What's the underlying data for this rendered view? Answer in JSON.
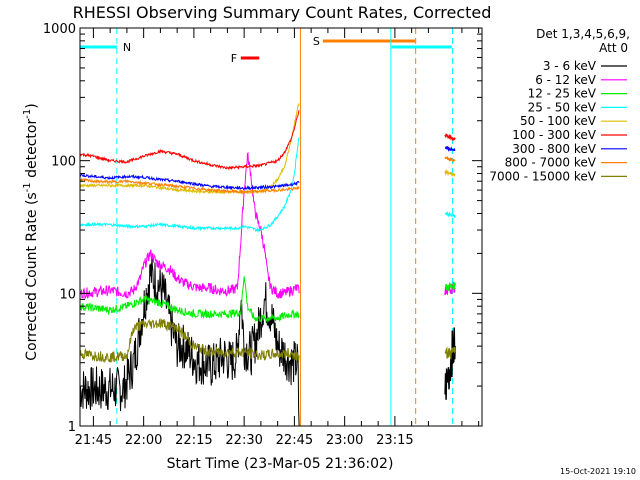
{
  "chart_data": {
    "type": "line",
    "title": "RHESSI Observing Summary Count Rates, Corrected",
    "xlabel": "Start Time (23-Mar-05 21:36:02)",
    "ylabel_parts": [
      "Corrected Count Rate (s",
      "-1",
      " detector",
      "-1",
      ")"
    ],
    "yscale": "log",
    "ylim": [
      1,
      1000
    ],
    "y_ticks": [
      {
        "value": 1,
        "label": "1"
      },
      {
        "value": 10,
        "label": "10"
      },
      {
        "value": 100,
        "label": "100"
      },
      {
        "value": 1000,
        "label": "1000"
      }
    ],
    "xlim_minutes": [
      -19,
      101
    ],
    "x_ticks": [
      {
        "t": -15,
        "label": "21:45"
      },
      {
        "t": 0,
        "label": "22:00"
      },
      {
        "t": 15,
        "label": "22:15"
      },
      {
        "t": 30,
        "label": "22:30"
      },
      {
        "t": 45,
        "label": "22:45"
      },
      {
        "t": 60,
        "label": "23:00"
      },
      {
        "t": 75,
        "label": "23:15"
      }
    ],
    "legend": {
      "placement": "right",
      "header": [
        "Det 1,3,4,5,6,9,",
        "Att 0"
      ]
    },
    "series": [
      {
        "name": "3 - 6 keV",
        "color": "#000000",
        "points": [
          [
            -19,
            1.9
          ],
          [
            -6,
            1.9
          ],
          [
            -5,
            2.2
          ],
          [
            -3,
            3
          ],
          [
            -2,
            4
          ],
          [
            0,
            8
          ],
          [
            2,
            14
          ],
          [
            4,
            12
          ],
          [
            6,
            10
          ],
          [
            8,
            6
          ],
          [
            10,
            4
          ],
          [
            12,
            4
          ],
          [
            14,
            3.5
          ],
          [
            16,
            3
          ],
          [
            18,
            3
          ],
          [
            20,
            2.8
          ],
          [
            22,
            3
          ],
          [
            24,
            3.4
          ],
          [
            26,
            3
          ],
          [
            28,
            3.5
          ],
          [
            29,
            10
          ],
          [
            30,
            4
          ],
          [
            32,
            3.5
          ],
          [
            34,
            5
          ],
          [
            36,
            9
          ],
          [
            38,
            7
          ],
          [
            40,
            4
          ],
          [
            42,
            3.5
          ],
          [
            44,
            3
          ],
          [
            46,
            3
          ],
          [
            46.4,
            1
          ]
        ],
        "x2": [
          [
            90,
            1.9
          ],
          [
            91,
            2.5
          ],
          [
            92,
            3.5
          ],
          [
            93,
            4
          ]
        ]
      },
      {
        "name": "6 - 12 keV",
        "color": "#ff00ff",
        "points": [
          [
            -19,
            10
          ],
          [
            -10,
            10.5
          ],
          [
            -5,
            10
          ],
          [
            -3,
            10.5
          ],
          [
            -1,
            13
          ],
          [
            0,
            16
          ],
          [
            2,
            20
          ],
          [
            4,
            17
          ],
          [
            6,
            16
          ],
          [
            8,
            15
          ],
          [
            10,
            13
          ],
          [
            12,
            12
          ],
          [
            14,
            11.5
          ],
          [
            16,
            11
          ],
          [
            18,
            11
          ],
          [
            20,
            11
          ],
          [
            22,
            10.5
          ],
          [
            24,
            10.5
          ],
          [
            26,
            10.5
          ],
          [
            28,
            11
          ],
          [
            29,
            25
          ],
          [
            30,
            60
          ],
          [
            31,
            110
          ],
          [
            32,
            80
          ],
          [
            33,
            45
          ],
          [
            34,
            35
          ],
          [
            35,
            30
          ],
          [
            36,
            22
          ],
          [
            37,
            14
          ],
          [
            38,
            11
          ],
          [
            40,
            10
          ],
          [
            42,
            10
          ],
          [
            44,
            10.5
          ],
          [
            46,
            11
          ],
          [
            46.4,
            10
          ]
        ],
        "x2": [
          [
            90,
            10.5
          ],
          [
            93,
            11
          ]
        ]
      },
      {
        "name": "12 - 25 keV",
        "color": "#00ee00",
        "points": [
          [
            -19,
            8
          ],
          [
            -10,
            7.5
          ],
          [
            -5,
            8
          ],
          [
            0,
            9
          ],
          [
            5,
            8.5
          ],
          [
            10,
            7.5
          ],
          [
            15,
            7
          ],
          [
            20,
            7
          ],
          [
            25,
            7
          ],
          [
            29,
            7.2
          ],
          [
            30,
            14
          ],
          [
            31,
            8
          ],
          [
            33,
            6.5
          ],
          [
            36,
            6.5
          ],
          [
            40,
            6.5
          ],
          [
            44,
            7
          ],
          [
            46,
            7
          ],
          [
            46.4,
            6.8
          ]
        ],
        "x2": [
          [
            90,
            11
          ],
          [
            93,
            11.5
          ]
        ]
      },
      {
        "name": "25 - 50 keV",
        "color": "#00ffff",
        "points": [
          [
            -19,
            33
          ],
          [
            -10,
            33
          ],
          [
            -5,
            32
          ],
          [
            0,
            32
          ],
          [
            5,
            33
          ],
          [
            10,
            32
          ],
          [
            15,
            31
          ],
          [
            20,
            31
          ],
          [
            25,
            31
          ],
          [
            28,
            31
          ],
          [
            30,
            32
          ],
          [
            32,
            31
          ],
          [
            34,
            30
          ],
          [
            36,
            31
          ],
          [
            38,
            33
          ],
          [
            40,
            38
          ],
          [
            42,
            45
          ],
          [
            44,
            60
          ],
          [
            45,
            80
          ],
          [
            46,
            130
          ],
          [
            46.4,
            150
          ]
        ],
        "x2": [
          [
            90,
            40
          ],
          [
            93,
            38
          ]
        ]
      },
      {
        "name": "50 - 100 keV",
        "color": "#ddbb00",
        "points": [
          [
            -19,
            65
          ],
          [
            -5,
            65
          ],
          [
            0,
            65
          ],
          [
            10,
            60
          ],
          [
            20,
            58
          ],
          [
            30,
            58
          ],
          [
            34,
            58
          ],
          [
            36,
            60
          ],
          [
            38,
            64
          ],
          [
            40,
            72
          ],
          [
            42,
            90
          ],
          [
            44,
            140
          ],
          [
            45,
            190
          ],
          [
            46,
            250
          ],
          [
            46.4,
            270
          ]
        ],
        "x2": [
          [
            90,
            82
          ],
          [
            93,
            78
          ]
        ]
      },
      {
        "name": "100 - 300 keV",
        "color": "#ff0000",
        "points": [
          [
            -19,
            112
          ],
          [
            -15,
            108
          ],
          [
            -10,
            100
          ],
          [
            -5,
            98
          ],
          [
            0,
            108
          ],
          [
            5,
            118
          ],
          [
            10,
            112
          ],
          [
            15,
            100
          ],
          [
            20,
            93
          ],
          [
            25,
            88
          ],
          [
            30,
            90
          ],
          [
            35,
            92
          ],
          [
            40,
            100
          ],
          [
            42,
            115
          ],
          [
            44,
            145
          ],
          [
            45,
            175
          ],
          [
            46,
            220
          ],
          [
            46.4,
            240
          ]
        ],
        "x2": [
          [
            90,
            155
          ],
          [
            93,
            145
          ]
        ]
      },
      {
        "name": "300 - 800 keV",
        "color": "#0000ff",
        "points": [
          [
            -19,
            78
          ],
          [
            -15,
            76
          ],
          [
            -10,
            74
          ],
          [
            -5,
            76
          ],
          [
            0,
            75
          ],
          [
            5,
            72
          ],
          [
            10,
            70
          ],
          [
            15,
            67
          ],
          [
            20,
            64
          ],
          [
            25,
            63
          ],
          [
            30,
            62
          ],
          [
            35,
            63
          ],
          [
            40,
            64
          ],
          [
            44,
            66
          ],
          [
            46,
            68
          ],
          [
            46.4,
            68
          ]
        ],
        "x2": [
          [
            90,
            125
          ],
          [
            93,
            120
          ]
        ]
      },
      {
        "name": "800 - 7000 keV",
        "color": "#ff8000",
        "points": [
          [
            -19,
            72
          ],
          [
            -15,
            70
          ],
          [
            -10,
            69
          ],
          [
            -5,
            70
          ],
          [
            0,
            68
          ],
          [
            5,
            66
          ],
          [
            10,
            64
          ],
          [
            15,
            62
          ],
          [
            20,
            60
          ],
          [
            25,
            59
          ],
          [
            30,
            58
          ],
          [
            35,
            59
          ],
          [
            40,
            60
          ],
          [
            44,
            61
          ],
          [
            46,
            62
          ],
          [
            46.4,
            62
          ]
        ],
        "x2": [
          [
            90,
            105
          ],
          [
            93,
            100
          ]
        ]
      },
      {
        "name": "7000 - 15000 keV",
        "color": "#808000",
        "points": [
          [
            -19,
            3.5
          ],
          [
            -10,
            3.3
          ],
          [
            -5,
            3.4
          ],
          [
            -3,
            5.5
          ],
          [
            0,
            5.8
          ],
          [
            5,
            6
          ],
          [
            10,
            5.5
          ],
          [
            15,
            4
          ],
          [
            20,
            3.6
          ],
          [
            25,
            3.6
          ],
          [
            30,
            3.6
          ],
          [
            35,
            3.4
          ],
          [
            40,
            3.5
          ],
          [
            44,
            3.5
          ],
          [
            46,
            3.4
          ],
          [
            46.4,
            3.4
          ]
        ],
        "x2": [
          [
            90,
            3.5
          ],
          [
            93,
            3.6
          ]
        ]
      }
    ],
    "annotations": {
      "night_label": "N",
      "saa_label": "S",
      "flare_label": "F",
      "night_bars": [
        [
          -19,
          -8
        ],
        [
          74,
          92
        ]
      ],
      "saa_bar": [
        53.5,
        81
      ],
      "flare_bar": [
        29,
        34.5
      ],
      "night_lines_solid": [
        -19,
        73.8
      ],
      "night_lines_dashed": [
        -8,
        92.2
      ],
      "saa_line_solid": 46.8,
      "saa_line_dashed": 81.2,
      "colors": {
        "night": "#00ffff",
        "saa": "#ff8000",
        "flare": "#ff0000"
      }
    },
    "footer_date": "15-Oct-2021 19:10"
  }
}
